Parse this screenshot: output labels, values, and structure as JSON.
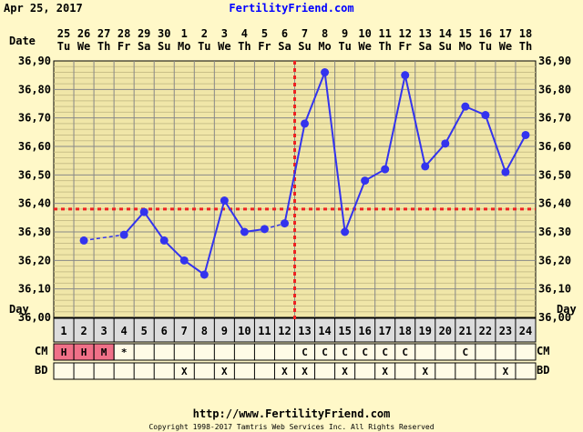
{
  "header": {
    "date": "Apr 25, 2017",
    "site": "FertilityFriend.com"
  },
  "footer": {
    "url": "http://www.FertilityFriend.com",
    "copyright": "Copyright 1998-2017 Tamtris Web Services Inc.  All Rights Reserved"
  },
  "row_labels": {
    "date": "Date",
    "day": "Day",
    "cm": "CM",
    "bd": "BD"
  },
  "colors": {
    "background": "#fff8c8",
    "grid_fill": "#f0e6a8",
    "line": "#3333ee",
    "coverline": "#ee2222",
    "day_row": "#dcdcdc",
    "cm_highlight": "#f07088"
  },
  "chart_data": {
    "type": "line",
    "ylim": [
      36.0,
      36.9
    ],
    "y_ticks": [
      "36,00",
      "36,10",
      "36,20",
      "36,30",
      "36,40",
      "36,50",
      "36,60",
      "36,70",
      "36,80",
      "36,90"
    ],
    "days": [
      1,
      2,
      3,
      4,
      5,
      6,
      7,
      8,
      9,
      10,
      11,
      12,
      13,
      14,
      15,
      16,
      17,
      18,
      19,
      20,
      21,
      22,
      23,
      24
    ],
    "dates": [
      "25",
      "26",
      "27",
      "28",
      "29",
      "30",
      "1",
      "2",
      "3",
      "4",
      "5",
      "6",
      "7",
      "8",
      "9",
      "10",
      "11",
      "12",
      "13",
      "14",
      "15",
      "16",
      "17",
      "18"
    ],
    "weekdays": [
      "Tu",
      "We",
      "Th",
      "Fr",
      "Sa",
      "Su",
      "Mo",
      "Tu",
      "We",
      "Th",
      "Fr",
      "Sa",
      "Su",
      "Mo",
      "Tu",
      "We",
      "Th",
      "Fr",
      "Sa",
      "Su",
      "Mo",
      "Tu",
      "We",
      "Th"
    ],
    "temps": [
      null,
      36.27,
      null,
      36.29,
      36.37,
      36.27,
      36.2,
      36.15,
      36.41,
      36.3,
      36.31,
      36.33,
      36.68,
      36.86,
      36.3,
      36.48,
      36.52,
      36.85,
      36.53,
      36.61,
      36.74,
      36.71,
      36.51,
      36.64
    ],
    "coverline": 36.38,
    "ovulation_day": 12,
    "cm": [
      "H",
      "H",
      "M",
      "*",
      "",
      "",
      "",
      "",
      "",
      "",
      "",
      "",
      "C",
      "C",
      "C",
      "C",
      "C",
      "C",
      "",
      "",
      "C",
      "",
      "",
      ""
    ],
    "cm_highlighted_days": [
      1,
      2,
      3
    ],
    "bd": [
      "",
      "",
      "",
      "",
      "",
      "",
      "X",
      "",
      "X",
      "",
      "",
      "X",
      "X",
      "",
      "X",
      "",
      "X",
      "",
      "X",
      "",
      "",
      "",
      "X",
      ""
    ]
  }
}
